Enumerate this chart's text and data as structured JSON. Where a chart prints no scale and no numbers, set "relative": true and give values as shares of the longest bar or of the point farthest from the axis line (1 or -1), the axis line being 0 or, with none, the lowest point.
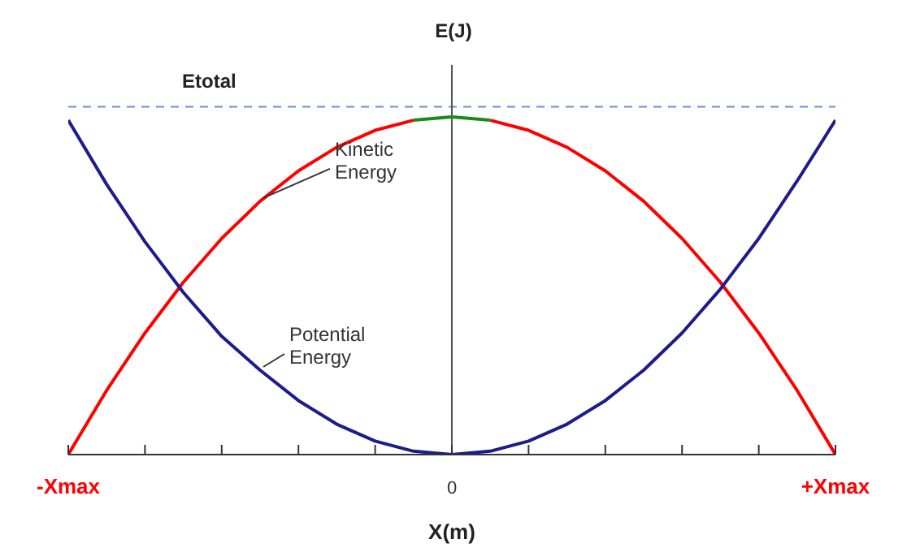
{
  "chart_data": {
    "type": "line",
    "relative": true,
    "xlabel": "X(m)",
    "ylabel": "E(J)",
    "legend": false,
    "grid": false,
    "marker": "none",
    "line_style": "solid",
    "categories": [
      "-Xmax",
      null,
      null,
      null,
      null,
      null,
      null,
      null,
      null,
      null,
      "0",
      null,
      null,
      null,
      null,
      null,
      null,
      null,
      null,
      null,
      "+Xmax"
    ],
    "series": [
      {
        "name": "Kinetic Energy",
        "color": "#ff0000",
        "values": [
          0,
          0.19,
          0.36,
          0.51,
          0.64,
          0.75,
          0.84,
          0.91,
          0.96,
          0.99,
          null,
          0.99,
          0.96,
          0.91,
          0.84,
          0.75,
          0.64,
          0.51,
          0.36,
          0.19,
          0
        ]
      },
      {
        "name": "Potential Energy",
        "color": "#1c1c8c",
        "values": [
          0.99,
          0.8,
          0.63,
          0.48,
          0.35,
          0.25,
          0.16,
          0.09,
          0.04,
          0.01,
          0,
          0.01,
          0.04,
          0.09,
          0.16,
          0.25,
          0.36,
          0.49,
          0.64,
          0.81,
          0.99
        ]
      },
      {
        "color": "#1a8a1a",
        "values": [
          null,
          null,
          null,
          null,
          null,
          null,
          null,
          null,
          null,
          0.99,
          1,
          0.99,
          null,
          null,
          null,
          null,
          null,
          null,
          null,
          null,
          null
        ]
      }
    ],
    "ref_lines": [
      {
        "axis": "y",
        "value": 1.03,
        "label": "Etotal",
        "color": "#6a8fd8",
        "line_style": "dashed"
      },
      {
        "axis": "x",
        "value": "0",
        "color": "#555555",
        "line_style": "solid"
      }
    ]
  }
}
